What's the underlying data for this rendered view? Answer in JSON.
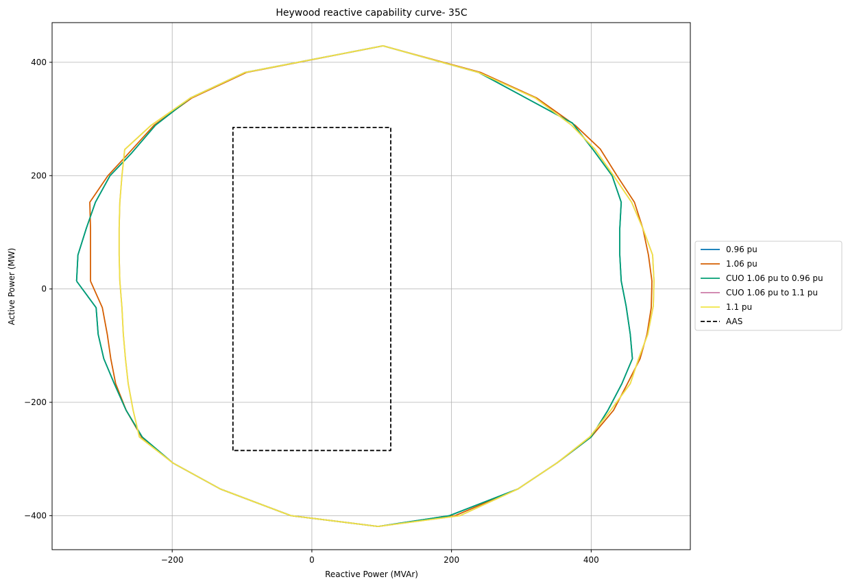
{
  "chart_data": {
    "type": "line",
    "title": "Heywood reactive capability curve- 35C",
    "xlabel": "Reactive Power (MVAr)",
    "ylabel": "Active Power (MW)",
    "xlim": [
      -372,
      542
    ],
    "ylim": [
      -460,
      470
    ],
    "xticks": [
      -200,
      0,
      200,
      400
    ],
    "yticks": [
      -400,
      -200,
      0,
      200,
      400
    ],
    "xtick_labels": [
      "−200",
      "0",
      "200",
      "400"
    ],
    "ytick_labels": [
      "−400",
      "−200",
      "0",
      "200",
      "400"
    ],
    "grid": true,
    "legend_position": "right (outside, center)",
    "series": [
      {
        "name": "0.96 pu",
        "color": "#0072b2",
        "dash": "solid",
        "points": [
          [
            -337,
            14
          ],
          [
            -335,
            60
          ],
          [
            -323,
            107
          ],
          [
            -310,
            153
          ],
          [
            -289,
            200
          ],
          [
            -258,
            240
          ],
          [
            -224,
            289
          ],
          [
            -174,
            337
          ],
          [
            -96,
            382
          ],
          [
            102,
            429
          ],
          [
            239,
            382
          ],
          [
            373,
            293
          ],
          [
            402,
            247
          ],
          [
            430,
            200
          ],
          [
            443,
            153
          ],
          [
            441,
            107
          ],
          [
            441,
            60
          ],
          [
            443,
            14
          ],
          [
            450,
            -30
          ],
          [
            456,
            -80
          ],
          [
            459,
            -123
          ],
          [
            444,
            -167
          ],
          [
            424,
            -214
          ],
          [
            400,
            -261
          ],
          [
            351,
            -307
          ],
          [
            295,
            -353
          ],
          [
            197,
            -400
          ],
          [
            95,
            -419
          ],
          [
            -30,
            -400
          ],
          [
            -131,
            -353
          ],
          [
            -199,
            -307
          ],
          [
            -243,
            -261
          ],
          [
            -266,
            -214
          ],
          [
            -283,
            -167
          ],
          [
            -298,
            -123
          ],
          [
            -306,
            -80
          ],
          [
            -309,
            -33
          ],
          [
            -337,
            14
          ]
        ]
      },
      {
        "name": "1.06 pu",
        "color": "#d55e00",
        "dash": "solid",
        "points": [
          [
            -317,
            14
          ],
          [
            -317,
            60
          ],
          [
            -317,
            107
          ],
          [
            -318,
            153
          ],
          [
            -292,
            200
          ],
          [
            -262,
            240
          ],
          [
            -226,
            289
          ],
          [
            -172,
            337
          ],
          [
            -94,
            382
          ],
          [
            102,
            429
          ],
          [
            242,
            382
          ],
          [
            322,
            337
          ],
          [
            377,
            289
          ],
          [
            413,
            247
          ],
          [
            437,
            200
          ],
          [
            462,
            153
          ],
          [
            474,
            107
          ],
          [
            482,
            60
          ],
          [
            487,
            14
          ],
          [
            486,
            -33
          ],
          [
            480,
            -80
          ],
          [
            470,
            -123
          ],
          [
            452,
            -167
          ],
          [
            432,
            -214
          ],
          [
            400,
            -261
          ],
          [
            351,
            -307
          ],
          [
            295,
            -353
          ],
          [
            205,
            -400
          ],
          [
            95,
            -419
          ],
          [
            -30,
            -400
          ],
          [
            -131,
            -353
          ],
          [
            -199,
            -307
          ],
          [
            -244,
            -261
          ],
          [
            -266,
            -214
          ],
          [
            -281,
            -167
          ],
          [
            -288,
            -123
          ],
          [
            -293,
            -80
          ],
          [
            -300,
            -33
          ],
          [
            -317,
            14
          ]
        ]
      },
      {
        "name": "CUO 1.06 pu to 0.96 pu",
        "color": "#009e73",
        "dash": "solid",
        "points": [
          [
            -337,
            14
          ],
          [
            -335,
            60
          ],
          [
            -323,
            107
          ],
          [
            -310,
            153
          ],
          [
            -289,
            200
          ],
          [
            -258,
            240
          ],
          [
            -224,
            289
          ],
          [
            -174,
            337
          ],
          [
            -96,
            382
          ],
          [
            102,
            429
          ],
          [
            239,
            382
          ],
          [
            373,
            293
          ],
          [
            402,
            247
          ],
          [
            430,
            200
          ],
          [
            443,
            153
          ],
          [
            441,
            107
          ],
          [
            441,
            60
          ],
          [
            443,
            14
          ],
          [
            450,
            -30
          ],
          [
            456,
            -80
          ],
          [
            459,
            -123
          ],
          [
            444,
            -167
          ],
          [
            424,
            -214
          ],
          [
            400,
            -261
          ],
          [
            351,
            -307
          ],
          [
            295,
            -353
          ],
          [
            197,
            -400
          ],
          [
            95,
            -419
          ],
          [
            -30,
            -400
          ],
          [
            -131,
            -353
          ],
          [
            -199,
            -307
          ],
          [
            -243,
            -261
          ],
          [
            -266,
            -214
          ],
          [
            -283,
            -167
          ],
          [
            -298,
            -123
          ],
          [
            -306,
            -80
          ],
          [
            -309,
            -33
          ],
          [
            -337,
            14
          ]
        ]
      },
      {
        "name": "CUO 1.06 pu to 1.1 pu",
        "color": "#cc79a7",
        "dash": "solid",
        "points": [
          [
            -275,
            14
          ],
          [
            -276,
            60
          ],
          [
            -276,
            107
          ],
          [
            -275,
            153
          ],
          [
            -272,
            200
          ],
          [
            -268,
            246
          ],
          [
            -230,
            289
          ],
          [
            -174,
            337
          ],
          [
            -96,
            382
          ],
          [
            102,
            429
          ],
          [
            239,
            382
          ],
          [
            320,
            337
          ],
          [
            372,
            289
          ],
          [
            405,
            247
          ],
          [
            432,
            200
          ],
          [
            458,
            153
          ],
          [
            474,
            107
          ],
          [
            488,
            60
          ],
          [
            490,
            14
          ],
          [
            489,
            -30
          ],
          [
            481,
            -80
          ],
          [
            468,
            -123
          ],
          [
            456,
            -167
          ],
          [
            428,
            -214
          ],
          [
            398,
            -261
          ],
          [
            351,
            -307
          ],
          [
            295,
            -353
          ],
          [
            212,
            -400
          ],
          [
            95,
            -419
          ],
          [
            -30,
            -400
          ],
          [
            -131,
            -353
          ],
          [
            -199,
            -307
          ],
          [
            -247,
            -261
          ],
          [
            -256,
            -214
          ],
          [
            -263,
            -167
          ],
          [
            -267,
            -123
          ],
          [
            -270,
            -80
          ],
          [
            -272,
            -33
          ],
          [
            -275,
            14
          ]
        ]
      },
      {
        "name": "1.1 pu",
        "color": "#f0e442",
        "dash": "solid",
        "points": [
          [
            -275,
            14
          ],
          [
            -276,
            60
          ],
          [
            -276,
            107
          ],
          [
            -275,
            153
          ],
          [
            -272,
            200
          ],
          [
            -268,
            246
          ],
          [
            -230,
            289
          ],
          [
            -174,
            337
          ],
          [
            -96,
            382
          ],
          [
            102,
            429
          ],
          [
            239,
            382
          ],
          [
            320,
            337
          ],
          [
            372,
            289
          ],
          [
            405,
            247
          ],
          [
            432,
            200
          ],
          [
            458,
            153
          ],
          [
            474,
            107
          ],
          [
            488,
            60
          ],
          [
            490,
            14
          ],
          [
            489,
            -30
          ],
          [
            481,
            -80
          ],
          [
            468,
            -123
          ],
          [
            456,
            -167
          ],
          [
            428,
            -214
          ],
          [
            398,
            -261
          ],
          [
            351,
            -307
          ],
          [
            295,
            -353
          ],
          [
            212,
            -400
          ],
          [
            95,
            -419
          ],
          [
            -30,
            -400
          ],
          [
            -131,
            -353
          ],
          [
            -199,
            -307
          ],
          [
            -247,
            -261
          ],
          [
            -256,
            -214
          ],
          [
            -263,
            -167
          ],
          [
            -267,
            -123
          ],
          [
            -270,
            -80
          ],
          [
            -272,
            -33
          ],
          [
            -275,
            14
          ]
        ]
      },
      {
        "name": "AAS",
        "color": "#000000",
        "dash": "dashed",
        "points": [
          [
            -113,
            -285
          ],
          [
            -113,
            285
          ],
          [
            113,
            285
          ],
          [
            113,
            -285
          ],
          [
            -113,
            -285
          ]
        ]
      }
    ]
  }
}
